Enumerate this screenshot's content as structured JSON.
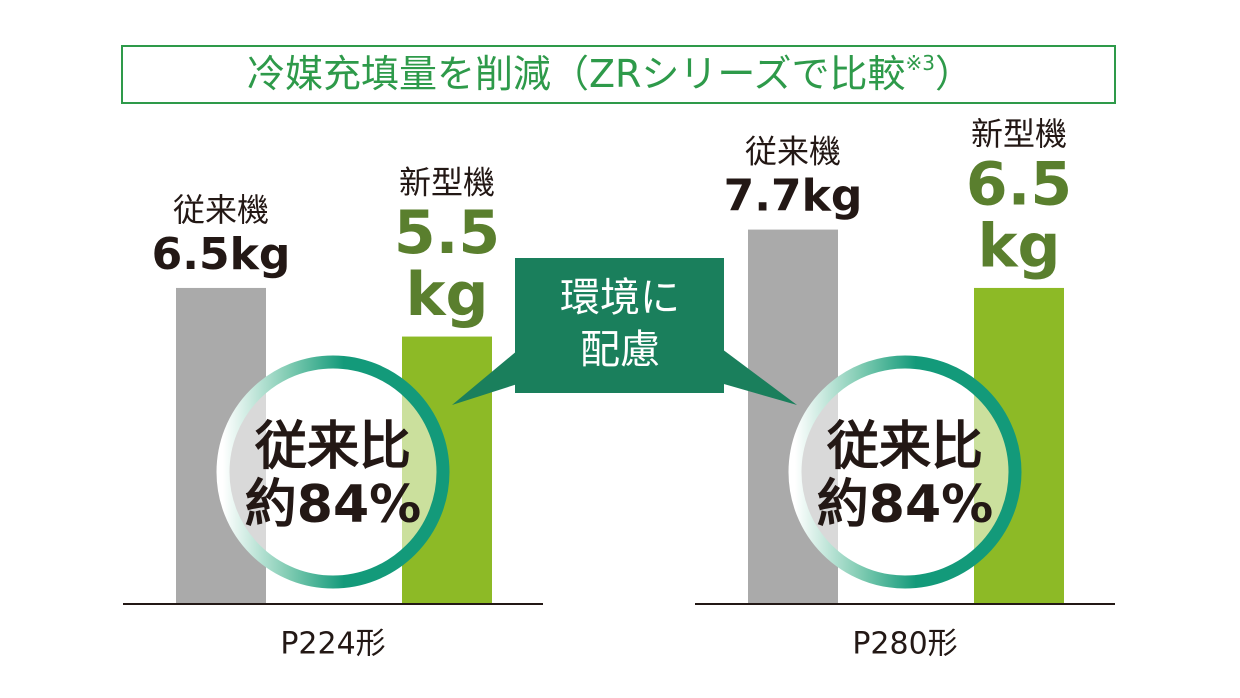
{
  "chart_data": {
    "type": "bar",
    "title": "冷媒充填量を削減（ZRシリーズで比較",
    "title_note": "※3",
    "title_close": "）",
    "categories": [
      "P224形",
      "P280形"
    ],
    "unit": "kg",
    "series": [
      {
        "name": "従来機",
        "color": "#aaaaaa",
        "label_color": "#231815",
        "values": [
          6.5,
          7.7
        ]
      },
      {
        "name": "新型機",
        "color": "#8dba26",
        "label_color": "#5a7f2e",
        "values": [
          5.5,
          6.5
        ]
      }
    ],
    "ratio_title": [
      "従来比",
      "従来比"
    ],
    "ratio_label": [
      "約84%",
      "約84%"
    ],
    "callout": [
      "環境に",
      "配慮"
    ],
    "ylim": [
      0,
      8
    ]
  }
}
